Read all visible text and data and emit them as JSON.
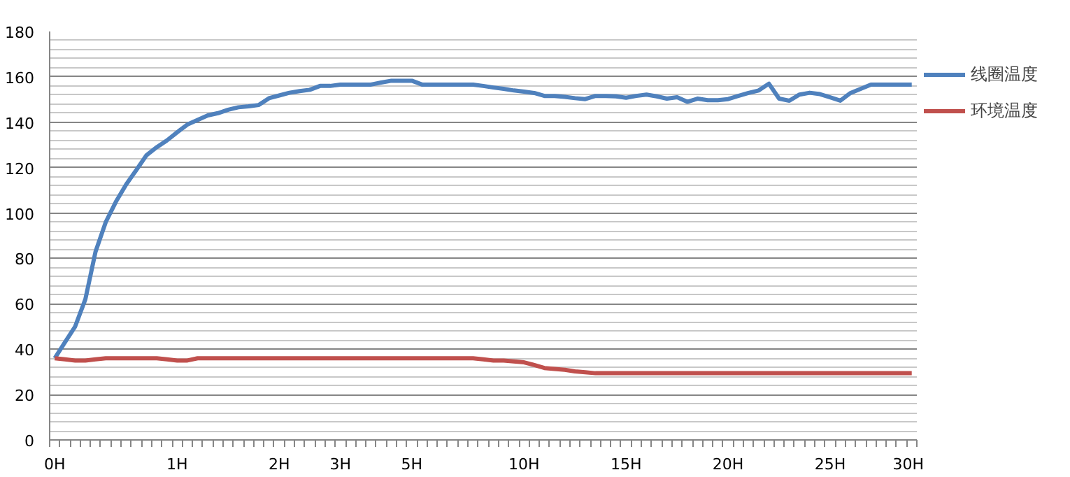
{
  "chart_data": {
    "type": "line",
    "categories": [
      "0H",
      null,
      null,
      null,
      null,
      null,
      null,
      null,
      null,
      null,
      null,
      null,
      "1H",
      null,
      null,
      null,
      null,
      null,
      null,
      null,
      null,
      null,
      "2H",
      null,
      null,
      null,
      null,
      null,
      "3H",
      null,
      null,
      null,
      null,
      null,
      null,
      "5H",
      null,
      null,
      null,
      null,
      null,
      null,
      null,
      null,
      null,
      null,
      "10H",
      null,
      null,
      null,
      null,
      null,
      null,
      null,
      null,
      null,
      "15H",
      null,
      null,
      null,
      null,
      null,
      null,
      null,
      null,
      null,
      "20H",
      null,
      null,
      null,
      null,
      null,
      null,
      null,
      null,
      null,
      "25H",
      null,
      null,
      null,
      null,
      null,
      null,
      null,
      "30H"
    ],
    "series": [
      {
        "name": "线圈温度",
        "color": "#4f81bd",
        "values": [
          36,
          43,
          50,
          62,
          83,
          96,
          105,
          112.6,
          119,
          125.5,
          129,
          132,
          135.6,
          139,
          141,
          143,
          144,
          145.5,
          146.6,
          147,
          147.6,
          150.6,
          151.8,
          153,
          153.7,
          154.3,
          156,
          156,
          156.6,
          156.6,
          156.6,
          156.6,
          157.5,
          158.3,
          158.3,
          158.3,
          156.6,
          156.6,
          156.6,
          156.6,
          156.6,
          156.6,
          156,
          155.3,
          154.7,
          154,
          153.5,
          152.9,
          151.6,
          151.6,
          151.2,
          150.6,
          150.2,
          151.6,
          151.6,
          151.4,
          150.8,
          151.6,
          152.2,
          151.4,
          150.4,
          151,
          149,
          150.4,
          149.7,
          149.7,
          150.2,
          151.6,
          152.9,
          154,
          157,
          150.4,
          149.5,
          152.2,
          153,
          152.4,
          151,
          149.5,
          152.9,
          154.7,
          156.6,
          156.6,
          156.6,
          156.6,
          156.6
        ]
      },
      {
        "name": "环境温度",
        "color": "#c0504d",
        "values": [
          36,
          35.5,
          35,
          35,
          35.5,
          36,
          36,
          36,
          36,
          36,
          36,
          35.5,
          35,
          35,
          36,
          36,
          36,
          36,
          36,
          36,
          36,
          36,
          36,
          36,
          36,
          36,
          36,
          36,
          36,
          36,
          36,
          36,
          36,
          36,
          36,
          36,
          36,
          36,
          36,
          36,
          36,
          36,
          35.5,
          35,
          35,
          34.6,
          34.2,
          33,
          31.7,
          31.3,
          30.9,
          30.2,
          29.8,
          29.4,
          29.4,
          29.4,
          29.4,
          29.4,
          29.4,
          29.4,
          29.4,
          29.4,
          29.4,
          29.4,
          29.4,
          29.4,
          29.4,
          29.4,
          29.4,
          29.4,
          29.4,
          29.4,
          29.4,
          29.4,
          29.4,
          29.4,
          29.4,
          29.4,
          29.4,
          29.4,
          29.4,
          29.4,
          29.4,
          29.4,
          29.4
        ]
      }
    ],
    "ylim": [
      0,
      180
    ],
    "yticks": [
      0,
      20,
      40,
      60,
      80,
      100,
      120,
      140,
      160,
      180
    ],
    "grid": "y",
    "legend": "right",
    "marker": "none",
    "line_style": "solid"
  }
}
